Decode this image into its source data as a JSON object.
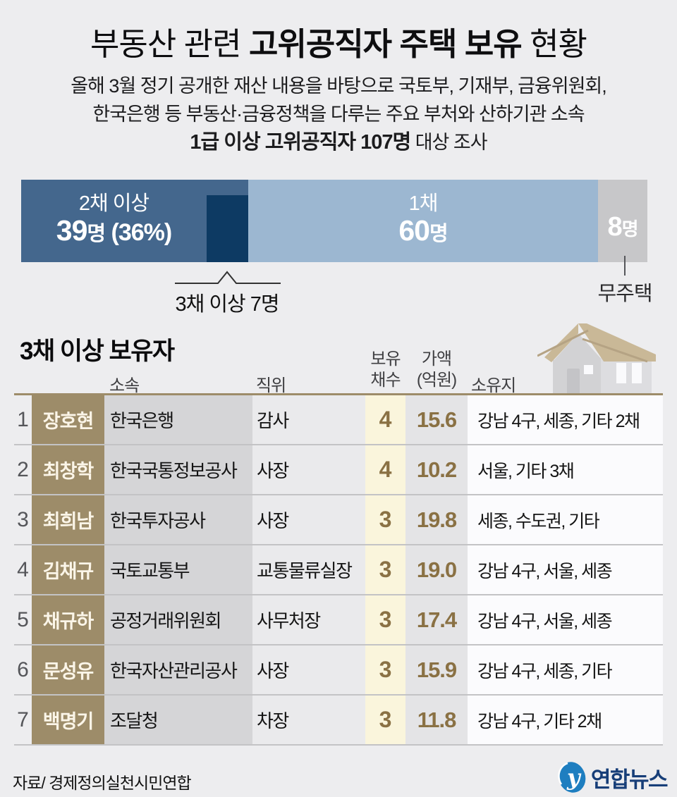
{
  "header": {
    "title_pre": "부동산 관련 ",
    "title_bold": "고위공직자 주택 보유",
    "title_post": " 현황",
    "subtitle_line1": "올해 3월 정기 공개한 재산 내용을 바탕으로 국토부, 기재부, 금융위원회,",
    "subtitle_line2": "한국은행 등 부동산·금융정책을 다루는 주요 부처와 산하기관 소속",
    "subtitle_line3_bold": "1급 이상 고위공직자 107명",
    "subtitle_line3_rest": " 대상 조사"
  },
  "chart_data": {
    "type": "bar",
    "title": "부동산 관련 고위공직자 주택 보유 현황",
    "total": 107,
    "unit": "명",
    "segments": [
      {
        "label": "2채 이상",
        "value": 39,
        "percent": 36,
        "color": "#44678d"
      },
      {
        "label": "1채",
        "value": 60,
        "color": "#9cb7d1"
      },
      {
        "label": "무주택",
        "value": 8,
        "color": "#c7c7c9"
      }
    ],
    "overlay_segment": {
      "label": "3채 이상",
      "value": 7,
      "color": "#0d3a63"
    }
  },
  "bar": {
    "seg1_label": "2채 이상",
    "seg1_num": "39",
    "seg1_unit": "명",
    "seg1_paren": " (36%)",
    "seg2_label": "1채",
    "seg2_num": "60",
    "seg2_unit": "명",
    "seg3_num": "8",
    "seg3_unit": "명",
    "callout_multi": "3채 이상 7명",
    "callout_none": "무주택"
  },
  "table": {
    "section_title": "3채 이상 보유자",
    "headers": {
      "affiliation": "소속",
      "position": "직위",
      "count_line1": "보유",
      "count_line2": "채수",
      "value_line1": "가액",
      "value_line2": "(억원)",
      "location": "소유지"
    },
    "rows": [
      {
        "rank": "1",
        "name": "장호현",
        "affiliation": "한국은행",
        "position": "감사",
        "count": "4",
        "value": "15.6",
        "location": "강남 4구, 세종, 기타 2채"
      },
      {
        "rank": "2",
        "name": "최창학",
        "affiliation": "한국국통정보공사",
        "position": "사장",
        "count": "4",
        "value": "10.2",
        "location": "서울, 기타 3채"
      },
      {
        "rank": "3",
        "name": "최희남",
        "affiliation": "한국투자공사",
        "position": "사장",
        "count": "3",
        "value": "19.8",
        "location": "세종, 수도권, 기타"
      },
      {
        "rank": "4",
        "name": "김채규",
        "affiliation": "국토교통부",
        "position": "교통물류실장",
        "count": "3",
        "value": "19.0",
        "location": "강남 4구, 서울, 세종"
      },
      {
        "rank": "5",
        "name": "채규하",
        "affiliation": "공정거래위원회",
        "position": "사무처장",
        "count": "3",
        "value": "17.4",
        "location": "강남 4구, 서울, 세종"
      },
      {
        "rank": "6",
        "name": "문성유",
        "affiliation": "한국자산관리공사",
        "position": "사장",
        "count": "3",
        "value": "15.9",
        "location": "강남 4구, 세종, 기타"
      },
      {
        "rank": "7",
        "name": "백명기",
        "affiliation": "조달청",
        "position": "차장",
        "count": "3",
        "value": "11.8",
        "location": "강남 4구, 기타 2채"
      }
    ]
  },
  "footer": {
    "source": "자료/ 경제정의실천시민연합",
    "logo_text": "연합뉴스"
  },
  "colors": {
    "page_bg": "#ededef",
    "bar_multi": "#44678d",
    "bar_one": "#9cb7d1",
    "bar_none": "#c7c7c9",
    "bar_triple": "#0d3a63",
    "tan": "#9d8c69",
    "number_text": "#8a7144",
    "cream": "#faf5dc",
    "logo_blue": "#1e7ec0",
    "logo_navy": "#173e78"
  }
}
